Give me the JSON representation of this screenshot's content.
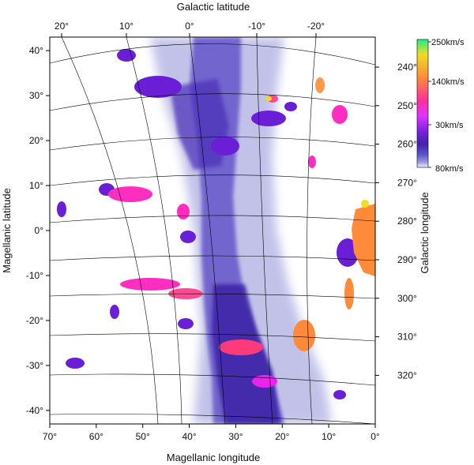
{
  "chart_data": {
    "type": "heatmap",
    "title": "",
    "xlabel": "Magellanic longitude",
    "ylabel": "Magellanic latitude",
    "top_axis_label": "Galactic latitude",
    "right_axis_label": "Galactic longitude",
    "xlim": [
      70,
      0
    ],
    "ylim": [
      -43,
      43
    ],
    "x_ticks": [
      "70°",
      "60°",
      "50°",
      "40°",
      "30°",
      "20°",
      "10°",
      "0°"
    ],
    "x_tick_values": [
      70,
      60,
      50,
      40,
      30,
      20,
      10,
      0
    ],
    "y_ticks": [
      "40°",
      "30°",
      "20°",
      "10°",
      "0°",
      "-10°",
      "-20°",
      "-30°",
      "-40°"
    ],
    "y_tick_values": [
      40,
      30,
      20,
      10,
      0,
      -10,
      -20,
      -30,
      -40
    ],
    "top_ticks": [
      "20°",
      "10°",
      "0°",
      "-10°",
      "-20°"
    ],
    "top_tick_values": [
      20,
      10,
      0,
      -10,
      -20
    ],
    "right_ticks": [
      "240°",
      "250°",
      "260°",
      "270°",
      "280°",
      "290°",
      "300°",
      "310°",
      "320°"
    ],
    "right_tick_values": [
      240,
      250,
      260,
      270,
      280,
      290,
      300,
      310,
      320
    ],
    "colorbar": {
      "labels": [
        "250km/s",
        "140km/s",
        "30km/s",
        "80km/s"
      ],
      "colors": [
        "#22ee88",
        "#eedd22",
        "#ff8a3a",
        "#ff2e9e",
        "#dd33ff",
        "#7722dd",
        "#4422aa",
        "#5a55cc",
        "#9a9adc",
        "#eeeeff"
      ]
    },
    "grid": true,
    "legend_position": "right"
  }
}
